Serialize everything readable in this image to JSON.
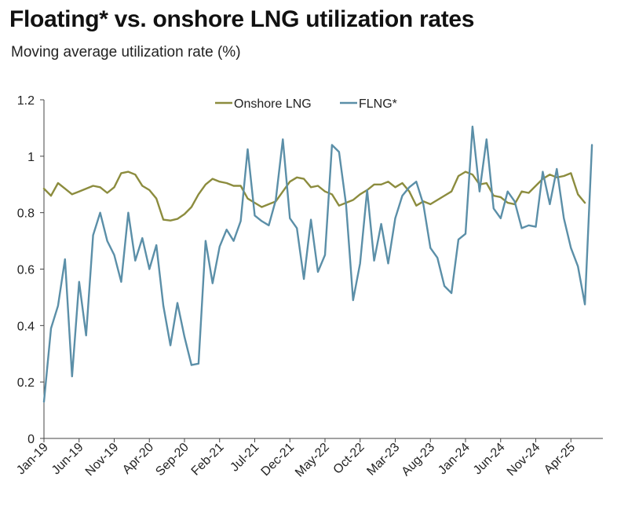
{
  "title": "Floating* vs. onshore LNG utilization rates",
  "subtitle": "Moving average utilization rate (%)",
  "chart_data": {
    "type": "line",
    "title": "Floating* vs. onshore LNG utilization rates",
    "subtitle": "Moving average utilization rate (%)",
    "xlabel": "",
    "ylabel": "",
    "ylim": [
      0,
      1.2
    ],
    "yticks": [
      0,
      0.2,
      0.4,
      0.6,
      0.8,
      1,
      1.2
    ],
    "ytick_labels": [
      "0",
      "0.2",
      "0.4",
      "0.6",
      "0.8",
      "1",
      "1.2"
    ],
    "xtick_labels": [
      "Jan-19",
      "Jun-19",
      "Nov-19",
      "Apr-20",
      "Sep-20",
      "Feb-21",
      "Jul-21",
      "Dec-21",
      "May-22",
      "Oct-22",
      "Mar-23",
      "Aug-23",
      "Jan-24",
      "Jun-24",
      "Nov-24",
      "Apr-25"
    ],
    "xtick_interval_months": 5,
    "start": "Jan-19",
    "legend_position": "top",
    "grid": false,
    "series": [
      {
        "name": "Onshore LNG",
        "color": "#8c8c3e",
        "values": [
          0.885,
          0.86,
          0.905,
          0.885,
          0.865,
          0.875,
          0.885,
          0.895,
          0.89,
          0.87,
          0.89,
          0.94,
          0.945,
          0.935,
          0.895,
          0.88,
          0.85,
          0.775,
          0.772,
          0.778,
          0.795,
          0.82,
          0.865,
          0.9,
          0.92,
          0.91,
          0.905,
          0.895,
          0.895,
          0.85,
          0.835,
          0.82,
          0.83,
          0.84,
          0.875,
          0.91,
          0.925,
          0.92,
          0.89,
          0.895,
          0.875,
          0.865,
          0.825,
          0.835,
          0.845,
          0.865,
          0.88,
          0.9,
          0.9,
          0.91,
          0.89,
          0.905,
          0.875,
          0.825,
          0.84,
          0.83,
          0.845,
          0.86,
          0.875,
          0.93,
          0.945,
          0.935,
          0.9,
          0.905,
          0.86,
          0.855,
          0.835,
          0.83,
          0.875,
          0.87,
          0.895,
          0.92,
          0.935,
          0.925,
          0.93,
          0.94,
          0.865,
          0.835
        ]
      },
      {
        "name": "FLNG*",
        "color": "#5b8fa8",
        "values": [
          0.13,
          0.39,
          0.47,
          0.635,
          0.22,
          0.555,
          0.365,
          0.72,
          0.8,
          0.7,
          0.65,
          0.555,
          0.8,
          0.63,
          0.71,
          0.6,
          0.685,
          0.47,
          0.33,
          0.48,
          0.36,
          0.26,
          0.265,
          0.7,
          0.55,
          0.68,
          0.74,
          0.7,
          0.77,
          1.025,
          0.79,
          0.77,
          0.755,
          0.845,
          1.06,
          0.78,
          0.745,
          0.565,
          0.775,
          0.59,
          0.65,
          1.04,
          1.015,
          0.83,
          0.49,
          0.62,
          0.88,
          0.63,
          0.76,
          0.62,
          0.78,
          0.86,
          0.89,
          0.91,
          0.83,
          0.675,
          0.64,
          0.54,
          0.515,
          0.705,
          0.725,
          1.105,
          0.875,
          1.06,
          0.815,
          0.78,
          0.875,
          0.84,
          0.745,
          0.755,
          0.75,
          0.945,
          0.83,
          0.955,
          0.78,
          0.675,
          0.61,
          0.475,
          1.04
        ]
      }
    ]
  }
}
